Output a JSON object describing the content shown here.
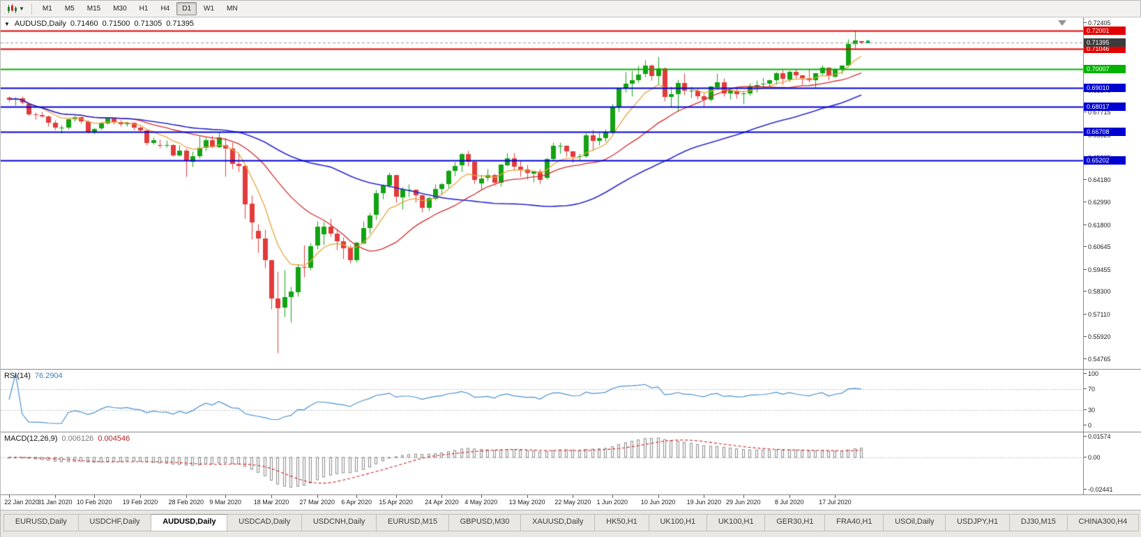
{
  "toolbar": {
    "timeframes": [
      "M1",
      "M5",
      "M15",
      "M30",
      "H1",
      "H4",
      "D1",
      "W1",
      "MN"
    ],
    "active_timeframe": "D1"
  },
  "chart": {
    "header": {
      "symbol": "AUDUSD,Daily",
      "open": "0.71460",
      "high": "0.71500",
      "low": "0.71305",
      "close": "0.71395"
    },
    "price_range": {
      "max": 0.727,
      "min": 0.5425
    },
    "y_ticks": [
      "0.72405",
      "0.71215",
      "0.70060",
      "0.68870",
      "0.67715",
      "0.66525",
      "0.65335",
      "0.64180",
      "0.62990",
      "0.61800",
      "0.60645",
      "0.59455",
      "0.58300",
      "0.57110",
      "0.55920",
      "0.54765"
    ],
    "hlines": [
      {
        "price": 0.72001,
        "label": "0.72001",
        "color": "#e00000"
      },
      {
        "price": 0.71046,
        "label": "0.71046",
        "color": "#e00000"
      },
      {
        "price": 0.70007,
        "label": "0.70007",
        "color": "#00b200"
      },
      {
        "price": 0.6901,
        "label": "0.69010",
        "color": "#0000d0"
      },
      {
        "price": 0.68017,
        "label": "0.68017",
        "color": "#0000d0"
      },
      {
        "price": 0.66708,
        "label": "0.66708",
        "color": "#0000d0"
      },
      {
        "price": 0.65202,
        "label": "0.65202",
        "color": "#0000d0"
      }
    ],
    "current_price": {
      "price": 0.71395,
      "label": "0.71395",
      "bg": "#3c3c3c"
    },
    "colors": {
      "bull": "#12a312",
      "bear": "#e23b3b",
      "ma_fast": "#e8a33d",
      "ma_medium": "#d42a2a",
      "ma_slow": "#2828cf",
      "current_line": "#9a9a9a",
      "marker_green": "#00a64f",
      "shift_marker": "#909090"
    }
  },
  "chart_data": {
    "type": "candlestick",
    "title": "AUDUSD,Daily",
    "symbol": "AUDUSD",
    "timeframe": "Daily",
    "ylim": [
      0.5425,
      0.727
    ],
    "ohlc": [
      [
        0.685,
        0.6858,
        0.6827,
        0.684
      ],
      [
        0.684,
        0.6851,
        0.681,
        0.6846
      ],
      [
        0.6846,
        0.6855,
        0.6815,
        0.6825
      ],
      [
        0.6815,
        0.6821,
        0.6753,
        0.676
      ],
      [
        0.676,
        0.6772,
        0.6735,
        0.6756
      ],
      [
        0.6756,
        0.6775,
        0.6745,
        0.675
      ],
      [
        0.675,
        0.6756,
        0.67,
        0.6716
      ],
      [
        0.6716,
        0.6733,
        0.668,
        0.6691
      ],
      [
        0.6687,
        0.6708,
        0.6663,
        0.669
      ],
      [
        0.669,
        0.674,
        0.6685,
        0.6735
      ],
      [
        0.6735,
        0.6756,
        0.6725,
        0.6746
      ],
      [
        0.6746,
        0.6751,
        0.6715,
        0.6725
      ],
      [
        0.6725,
        0.6731,
        0.6662,
        0.6671
      ],
      [
        0.6666,
        0.669,
        0.6658,
        0.6685
      ],
      [
        0.6685,
        0.6725,
        0.668,
        0.6716
      ],
      [
        0.6716,
        0.6746,
        0.671,
        0.674
      ],
      [
        0.674,
        0.6748,
        0.671,
        0.6721
      ],
      [
        0.6721,
        0.6731,
        0.67,
        0.671
      ],
      [
        0.671,
        0.6725,
        0.67,
        0.6716
      ],
      [
        0.6716,
        0.6721,
        0.668,
        0.669
      ],
      [
        0.669,
        0.67,
        0.6665,
        0.6676
      ],
      [
        0.6676,
        0.6679,
        0.66,
        0.6611
      ],
      [
        0.6611,
        0.6641,
        0.6605,
        0.6626
      ],
      [
        0.6601,
        0.6631,
        0.6585,
        0.66
      ],
      [
        0.66,
        0.6625,
        0.659,
        0.6601
      ],
      [
        0.6601,
        0.6606,
        0.654,
        0.6546
      ],
      [
        0.6546,
        0.6601,
        0.6542,
        0.6571
      ],
      [
        0.6571,
        0.6581,
        0.6435,
        0.6516
      ],
      [
        0.6511,
        0.6566,
        0.6485,
        0.6541
      ],
      [
        0.6541,
        0.6646,
        0.653,
        0.6586
      ],
      [
        0.6586,
        0.6641,
        0.657,
        0.6626
      ],
      [
        0.6626,
        0.6651,
        0.6585,
        0.6591
      ],
      [
        0.6591,
        0.6671,
        0.6585,
        0.6641
      ],
      [
        0.6601,
        0.6641,
        0.6435,
        0.6581
      ],
      [
        0.6581,
        0.6616,
        0.6475,
        0.6501
      ],
      [
        0.6501,
        0.6556,
        0.646,
        0.6491
      ],
      [
        0.6491,
        0.6496,
        0.6215,
        0.6291
      ],
      [
        0.6291,
        0.6336,
        0.6105,
        0.6191
      ],
      [
        0.6151,
        0.6186,
        0.6035,
        0.6111
      ],
      [
        0.6111,
        0.6156,
        0.5955,
        0.5996
      ],
      [
        0.5996,
        0.6001,
        0.574,
        0.5796
      ],
      [
        0.5796,
        0.5936,
        0.551,
        0.5746
      ],
      [
        0.5746,
        0.5946,
        0.57,
        0.5801
      ],
      [
        0.5801,
        0.5856,
        0.567,
        0.5831
      ],
      [
        0.5831,
        0.5976,
        0.5805,
        0.5961
      ],
      [
        0.5961,
        0.6076,
        0.591,
        0.5956
      ],
      [
        0.5956,
        0.6086,
        0.5945,
        0.6071
      ],
      [
        0.6071,
        0.6201,
        0.6055,
        0.6171
      ],
      [
        0.6131,
        0.6196,
        0.6075,
        0.6171
      ],
      [
        0.6171,
        0.6216,
        0.612,
        0.6136
      ],
      [
        0.6136,
        0.6161,
        0.605,
        0.6096
      ],
      [
        0.6096,
        0.6116,
        0.6005,
        0.6061
      ],
      [
        0.6061,
        0.6076,
        0.598,
        0.5996
      ],
      [
        0.5996,
        0.6096,
        0.5985,
        0.6086
      ],
      [
        0.6086,
        0.6201,
        0.608,
        0.6166
      ],
      [
        0.6166,
        0.6246,
        0.6135,
        0.6231
      ],
      [
        0.6231,
        0.6366,
        0.621,
        0.6346
      ],
      [
        0.6346,
        0.6396,
        0.632,
        0.6386
      ],
      [
        0.6386,
        0.6456,
        0.6375,
        0.6441
      ],
      [
        0.6441,
        0.6446,
        0.63,
        0.6326
      ],
      [
        0.6326,
        0.6381,
        0.6265,
        0.6366
      ],
      [
        0.6366,
        0.6396,
        0.633,
        0.6366
      ],
      [
        0.6366,
        0.6371,
        0.63,
        0.6336
      ],
      [
        0.6336,
        0.6341,
        0.625,
        0.6271
      ],
      [
        0.6271,
        0.6331,
        0.6255,
        0.6321
      ],
      [
        0.6321,
        0.6396,
        0.631,
        0.6371
      ],
      [
        0.6371,
        0.6401,
        0.634,
        0.6396
      ],
      [
        0.6396,
        0.6471,
        0.6375,
        0.6466
      ],
      [
        0.6466,
        0.6511,
        0.644,
        0.6491
      ],
      [
        0.6491,
        0.6561,
        0.646,
        0.6551
      ],
      [
        0.6551,
        0.6571,
        0.649,
        0.6511
      ],
      [
        0.6511,
        0.6521,
        0.64,
        0.6416
      ],
      [
        0.6401,
        0.6446,
        0.637,
        0.6426
      ],
      [
        0.6426,
        0.6476,
        0.6415,
        0.6441
      ],
      [
        0.6441,
        0.6451,
        0.639,
        0.6401
      ],
      [
        0.6401,
        0.6501,
        0.6385,
        0.6496
      ],
      [
        0.6496,
        0.6561,
        0.649,
        0.6531
      ],
      [
        0.6531,
        0.6561,
        0.647,
        0.6486
      ],
      [
        0.6486,
        0.6521,
        0.6435,
        0.6471
      ],
      [
        0.6471,
        0.6496,
        0.642,
        0.6451
      ],
      [
        0.6451,
        0.6466,
        0.6405,
        0.6461
      ],
      [
        0.6461,
        0.6476,
        0.64,
        0.6416
      ],
      [
        0.6426,
        0.6536,
        0.642,
        0.6526
      ],
      [
        0.6526,
        0.6616,
        0.652,
        0.6596
      ],
      [
        0.6596,
        0.6616,
        0.6555,
        0.6596
      ],
      [
        0.6596,
        0.6601,
        0.654,
        0.6566
      ],
      [
        0.6566,
        0.6571,
        0.651,
        0.6536
      ],
      [
        0.6536,
        0.6556,
        0.652,
        0.6541
      ],
      [
        0.6541,
        0.6666,
        0.6535,
        0.6651
      ],
      [
        0.6651,
        0.6681,
        0.657,
        0.6621
      ],
      [
        0.6621,
        0.6666,
        0.66,
        0.6636
      ],
      [
        0.6636,
        0.6686,
        0.662,
        0.6666
      ],
      [
        0.6666,
        0.6816,
        0.666,
        0.6796
      ],
      [
        0.6796,
        0.6901,
        0.6775,
        0.6896
      ],
      [
        0.6896,
        0.6986,
        0.688,
        0.6921
      ],
      [
        0.6921,
        0.6991,
        0.6855,
        0.6941
      ],
      [
        0.6941,
        0.7016,
        0.693,
        0.6971
      ],
      [
        0.6971,
        0.7046,
        0.696,
        0.7016
      ],
      [
        0.7016,
        0.7026,
        0.694,
        0.6961
      ],
      [
        0.6961,
        0.7066,
        0.692,
        0.7001
      ],
      [
        0.7001,
        0.7011,
        0.683,
        0.6851
      ],
      [
        0.6851,
        0.6906,
        0.68,
        0.6866
      ],
      [
        0.6866,
        0.6946,
        0.6775,
        0.6926
      ],
      [
        0.6926,
        0.6976,
        0.6865,
        0.6886
      ],
      [
        0.6886,
        0.6906,
        0.685,
        0.6886
      ],
      [
        0.6886,
        0.6896,
        0.684,
        0.6856
      ],
      [
        0.6856,
        0.6876,
        0.6805,
        0.6836
      ],
      [
        0.6836,
        0.6911,
        0.683,
        0.6906
      ],
      [
        0.6906,
        0.6976,
        0.689,
        0.6931
      ],
      [
        0.6931,
        0.6951,
        0.6855,
        0.6871
      ],
      [
        0.6871,
        0.6896,
        0.684,
        0.6886
      ],
      [
        0.6886,
        0.6901,
        0.6845,
        0.6866
      ],
      [
        0.6866,
        0.6881,
        0.6815,
        0.6871
      ],
      [
        0.6871,
        0.6926,
        0.686,
        0.6906
      ],
      [
        0.6906,
        0.6941,
        0.688,
        0.6916
      ],
      [
        0.6916,
        0.6956,
        0.69,
        0.6921
      ],
      [
        0.6921,
        0.6946,
        0.6905,
        0.6941
      ],
      [
        0.6941,
        0.6986,
        0.692,
        0.6976
      ],
      [
        0.6976,
        0.6996,
        0.692,
        0.6946
      ],
      [
        0.6946,
        0.6991,
        0.6935,
        0.6986
      ],
      [
        0.6986,
        0.7001,
        0.695,
        0.6966
      ],
      [
        0.6966,
        0.6971,
        0.692,
        0.6951
      ],
      [
        0.6951,
        0.7001,
        0.693,
        0.6941
      ],
      [
        0.6941,
        0.6981,
        0.69,
        0.6976
      ],
      [
        0.6976,
        0.7021,
        0.697,
        0.7006
      ],
      [
        0.7006,
        0.7011,
        0.694,
        0.6961
      ],
      [
        0.6961,
        0.7006,
        0.6955,
        0.6996
      ],
      [
        0.6996,
        0.7021,
        0.6975,
        0.7016
      ],
      [
        0.7016,
        0.7156,
        0.701,
        0.7131
      ],
      [
        0.7131,
        0.72,
        0.711,
        0.715
      ],
      [
        0.7146,
        0.715,
        0.7131,
        0.714
      ]
    ],
    "x_labels": [
      {
        "i": 0,
        "t": "22 Jan 2020"
      },
      {
        "i": 7,
        "t": "31 Jan 2020"
      },
      {
        "i": 13,
        "t": "10 Feb 2020"
      },
      {
        "i": 20,
        "t": "19 Feb 2020"
      },
      {
        "i": 27,
        "t": "28 Feb 2020"
      },
      {
        "i": 33,
        "t": "9 Mar 2020"
      },
      {
        "i": 40,
        "t": "18 Mar 2020"
      },
      {
        "i": 47,
        "t": "27 Mar 2020"
      },
      {
        "i": 53,
        "t": "6 Apr 2020"
      },
      {
        "i": 59,
        "t": "15 Apr 2020"
      },
      {
        "i": 66,
        "t": "24 Apr 2020"
      },
      {
        "i": 72,
        "t": "4 May 2020"
      },
      {
        "i": 79,
        "t": "13 May 2020"
      },
      {
        "i": 86,
        "t": "22 May 2020"
      },
      {
        "i": 92,
        "t": "1 Jun 2020"
      },
      {
        "i": 99,
        "t": "10 Jun 2020"
      },
      {
        "i": 106,
        "t": "19 Jun 2020"
      },
      {
        "i": 112,
        "t": "29 Jun 2020"
      },
      {
        "i": 119,
        "t": "8 Jul 2020"
      },
      {
        "i": 126,
        "t": "17 Jul 2020"
      }
    ],
    "moving_averages": [
      {
        "name": "fast",
        "type": "ema",
        "period": 8,
        "color": "#e8a33d"
      },
      {
        "name": "medium",
        "type": "sma",
        "period": 20,
        "color": "#d42a2a"
      },
      {
        "name": "slow",
        "type": "sma",
        "period": 50,
        "color": "#2828cf"
      }
    ]
  },
  "rsi": {
    "title": "RSI(14)",
    "value": "76.2904",
    "period": 14,
    "levels": [
      "100",
      "70",
      "30",
      "0"
    ],
    "dashed_levels": [
      70,
      30
    ],
    "line_color": "#4a90d0"
  },
  "macd": {
    "title": "MACD(12,26,9)",
    "macd_value": "0.006126",
    "signal_value": "0.004546",
    "y_ticks": [
      "0.01574",
      "0.00",
      "-0.02441"
    ],
    "range": {
      "max": 0.01574,
      "min": -0.02441
    },
    "histogram_color": "#8a8a8a",
    "signal_color": "#d02020"
  },
  "tabs": {
    "items": [
      "EURUSD,Daily",
      "USDCHF,Daily",
      "AUDUSD,Daily",
      "USDCAD,Daily",
      "USDCNH,Daily",
      "EURUSD,M15",
      "GBPUSD,M30",
      "XAUUSD,Daily",
      "HK50,H1",
      "UK100,H1",
      "UK100,H1",
      "GER30,H1",
      "FRA40,H1",
      "USOil,Daily",
      "USDJPY,H1",
      "DJ30,M15",
      "CHINA300,H4"
    ],
    "active_index": 2
  }
}
